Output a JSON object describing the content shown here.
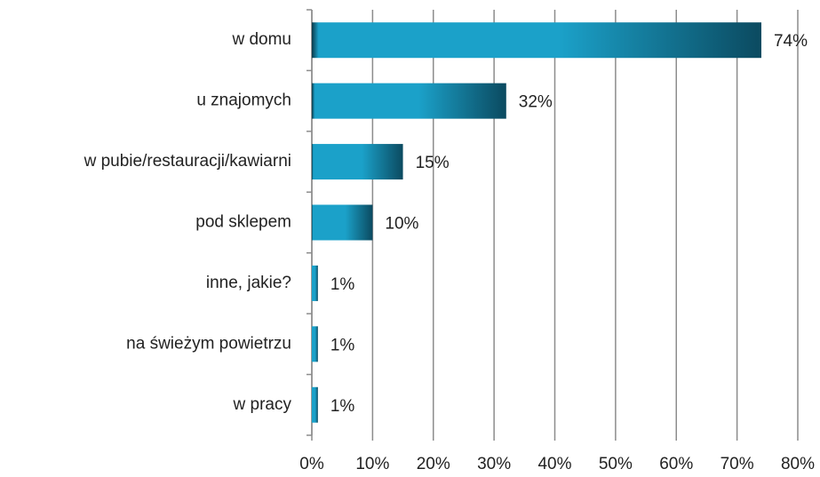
{
  "chart_data": {
    "type": "bar",
    "orientation": "horizontal",
    "categories": [
      "w domu",
      "u znajomych",
      "w pubie/restauracji/kawiarni",
      "pod sklepem",
      "inne, jakie?",
      "na świeżym powietrzu",
      "w pracy"
    ],
    "values": [
      74,
      32,
      15,
      10,
      1,
      1,
      1
    ],
    "value_labels": [
      "74%",
      "32%",
      "15%",
      "10%",
      "1%",
      "1%",
      "1%"
    ],
    "color": "#1ba1c9",
    "xlim": [
      0,
      80
    ],
    "xticks": [
      {
        "value": 0,
        "label": "0%"
      },
      {
        "value": 10,
        "label": "10%"
      },
      {
        "value": 20,
        "label": "20%"
      },
      {
        "value": 30,
        "label": "30%"
      },
      {
        "value": 40,
        "label": "40%"
      },
      {
        "value": 50,
        "label": "50%"
      },
      {
        "value": 60,
        "label": "60%"
      },
      {
        "value": 70,
        "label": "70%"
      },
      {
        "value": 80,
        "label": "80%"
      }
    ],
    "grid": true
  }
}
